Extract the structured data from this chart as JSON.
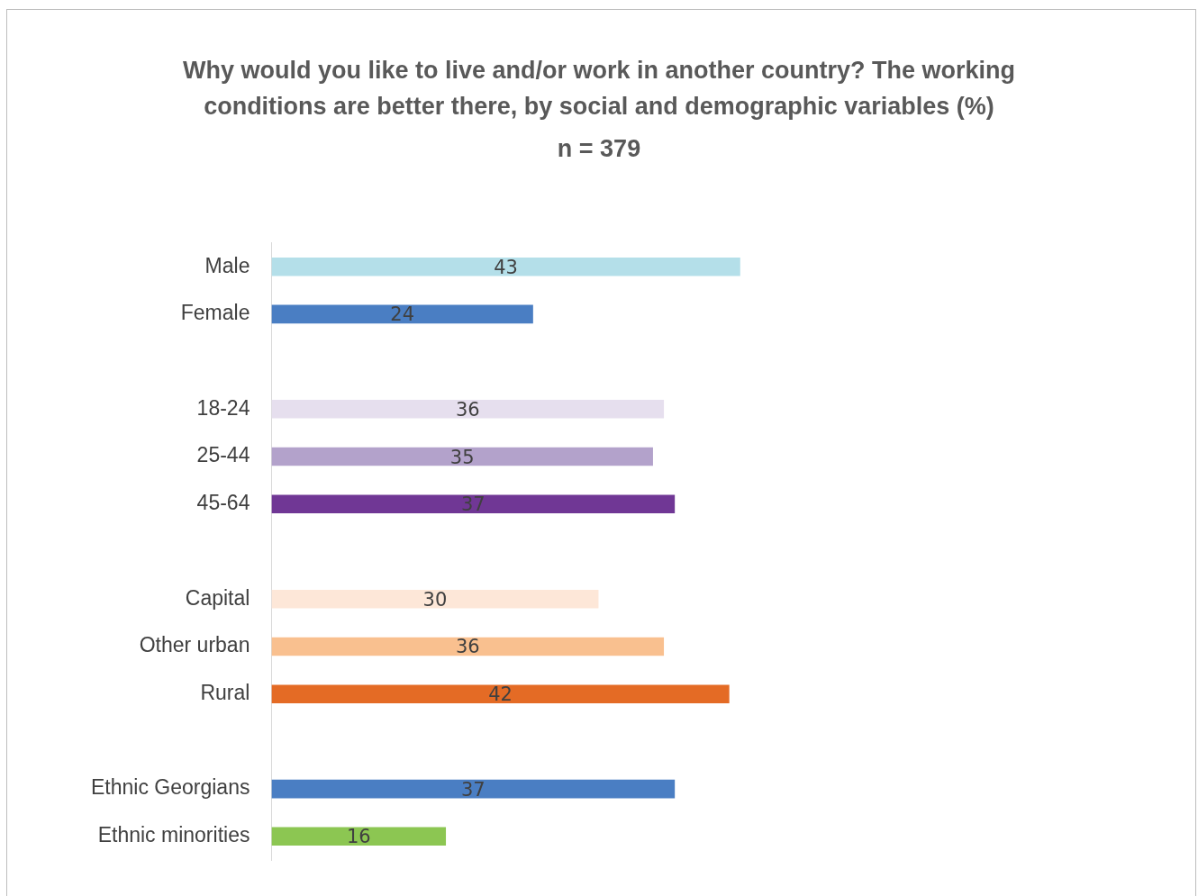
{
  "chart_data": {
    "type": "bar",
    "orientation": "horizontal",
    "title": "Why would you like to live and/or work in another country? The working conditions are better there, by social and demographic variables (%)",
    "subtitle": "n = 379",
    "categories": [
      "Male",
      "Female",
      null,
      "18-24",
      "25-44",
      "45-64",
      null,
      "Capital",
      "Other urban",
      "Rural",
      null,
      "Ethnic Georgians",
      "Ethnic minorities"
    ],
    "values": [
      43,
      24,
      null,
      36,
      35,
      37,
      null,
      30,
      36,
      42,
      null,
      37,
      16
    ],
    "colors": [
      "#b4dfe9",
      "#4a7ec3",
      "#ffffff",
      "#e6dfee",
      "#b3a2cb",
      "#703795",
      "#ffffff",
      "#fde7d8",
      "#f9c08f",
      "#e46b25",
      "#ffffff",
      "#4a7ec3",
      "#8cc652"
    ],
    "data_labels": true,
    "xlim": [
      0,
      85
    ],
    "grid": false,
    "legend": false
  }
}
